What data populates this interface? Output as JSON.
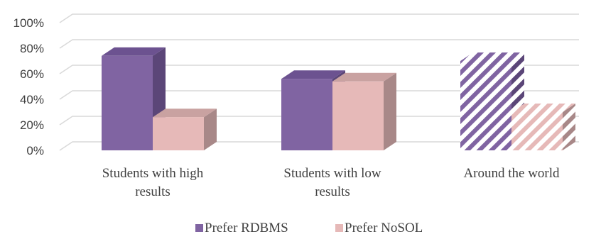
{
  "chart_data": {
    "type": "bar",
    "style": "3d-clustered-column",
    "categories": [
      [
        "Students with high",
        "results"
      ],
      [
        "Students with low",
        "results"
      ],
      [
        "Around the world"
      ]
    ],
    "series": [
      {
        "name": "Prefer RDBMS",
        "values": [
          74,
          56,
          70
        ],
        "color": "#8064a2",
        "side_color": "#5b4678",
        "top_color": "#6c5290"
      },
      {
        "name": "Prefer NoSQL",
        "values": [
          26,
          54,
          30
        ],
        "color": "#e6b9b8",
        "side_color": "#a88888",
        "top_color": "#c9a2a1"
      }
    ],
    "hatched_category_index": 2,
    "ylim": [
      0,
      100
    ],
    "yticks": [
      "0%",
      "20%",
      "40%",
      "60%",
      "80%",
      "100%"
    ],
    "grid": true,
    "legend_position": "bottom",
    "legend_labels": [
      "Prefer RDBMS",
      "Prefer NoSOL"
    ]
  }
}
